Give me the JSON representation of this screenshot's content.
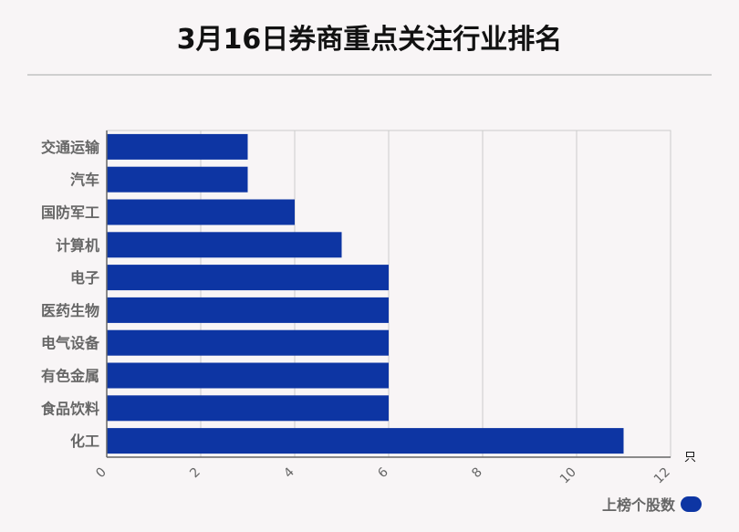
{
  "title": "3月16日券商重点关注行业排名",
  "colors": {
    "bar": "#0d35a3",
    "grid": "#cccccc",
    "axis": "#666666",
    "text": "#666666"
  },
  "chart_data": {
    "type": "bar",
    "orientation": "horizontal",
    "title": "3月16日券商重点关注行业排名",
    "categories": [
      "交通运输",
      "汽车",
      "国防军工",
      "计算机",
      "电子",
      "医药生物",
      "电气设备",
      "有色金属",
      "食品饮料",
      "化工"
    ],
    "series": [
      {
        "name": "上榜个股数",
        "values": [
          3,
          3,
          4,
          5,
          6,
          6,
          6,
          6,
          6,
          11
        ]
      }
    ],
    "xlim": [
      0,
      12
    ],
    "xticks": [
      0,
      2,
      4,
      6,
      8,
      10,
      12
    ],
    "xlabel": "只",
    "ylabel": "",
    "grid": true,
    "legend_position": "bottom-right"
  }
}
